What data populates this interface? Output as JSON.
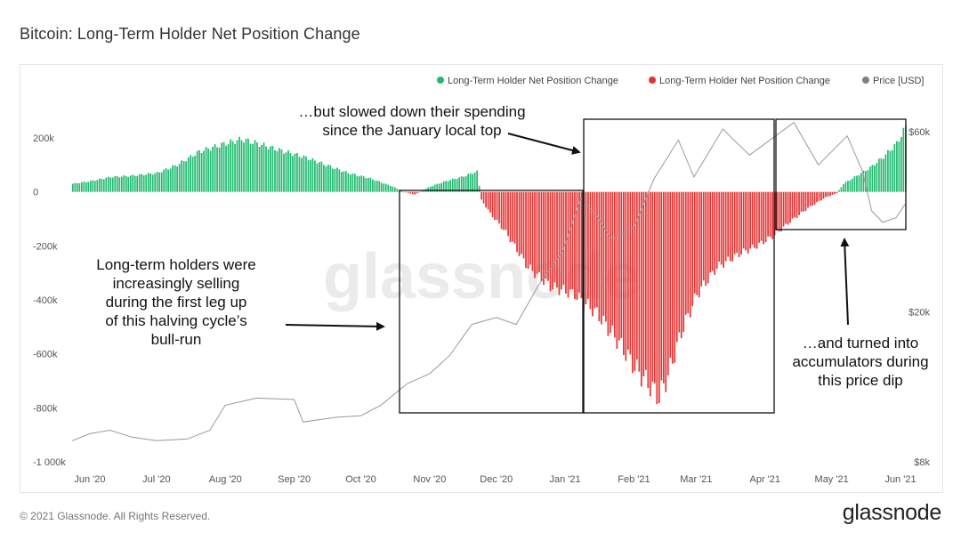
{
  "title": "Bitcoin: Long-Term Holder Net Position Change",
  "copyright": "© 2021 Glassnode. All Rights Reserved.",
  "brand": "glassnode",
  "watermark": "glassnode",
  "colors": {
    "positive": "#1fba6e",
    "negative": "#e63232",
    "price": "#999999",
    "legend_price_dot": "#808080",
    "box": "#111111"
  },
  "chart_data": {
    "type": "bar",
    "legend": [
      {
        "label": "Long-Term Holder Net Position Change",
        "color": "#1fba6e"
      },
      {
        "label": "Long-Term Holder Net Position Change",
        "color": "#e63232"
      },
      {
        "label": "Price [USD]",
        "color": "#808080"
      }
    ],
    "legend_position": "top-right",
    "x_ticks": [
      "Jun '20",
      "Jul '20",
      "Aug '20",
      "Sep '20",
      "Oct '20",
      "Nov '20",
      "Dec '20",
      "Jan '21",
      "Feb '21",
      "Mar '21",
      "Apr '21",
      "May '21",
      "Jun '21"
    ],
    "x_range": [
      "2020-05-24",
      "2021-06-03"
    ],
    "y_left": {
      "ticks": [
        200000,
        0,
        -200000,
        -400000,
        -600000,
        -800000,
        -1000000
      ],
      "tick_labels": [
        "200k",
        "0",
        "-200k",
        "-400k",
        "-600k",
        "-800k",
        "-1 000k"
      ],
      "range": [
        -1000000,
        260000
      ]
    },
    "y_right": {
      "scale": "log",
      "ticks": [
        60000,
        20000,
        8000
      ],
      "tick_labels": [
        "$60k",
        "$20k",
        "$8k"
      ],
      "range": [
        8000,
        65000
      ]
    },
    "net_position_series": [
      [
        "2020-05-24",
        30000
      ],
      [
        "2020-06-01",
        40000
      ],
      [
        "2020-06-10",
        55000
      ],
      [
        "2020-06-20",
        60000
      ],
      [
        "2020-07-01",
        70000
      ],
      [
        "2020-07-10",
        100000
      ],
      [
        "2020-07-20",
        150000
      ],
      [
        "2020-08-01",
        180000
      ],
      [
        "2020-08-08",
        195000
      ],
      [
        "2020-08-15",
        180000
      ],
      [
        "2020-08-25",
        155000
      ],
      [
        "2020-09-05",
        130000
      ],
      [
        "2020-09-15",
        100000
      ],
      [
        "2020-09-25",
        70000
      ],
      [
        "2020-10-05",
        50000
      ],
      [
        "2020-10-15",
        20000
      ],
      [
        "2020-10-20",
        0
      ],
      [
        "2020-10-25",
        -10000
      ],
      [
        "2020-11-01",
        20000
      ],
      [
        "2020-11-08",
        40000
      ],
      [
        "2020-11-15",
        55000
      ],
      [
        "2020-11-20",
        70000
      ],
      [
        "2020-11-22",
        75000
      ],
      [
        "2020-11-24",
        -30000
      ],
      [
        "2020-11-28",
        -80000
      ],
      [
        "2020-12-05",
        -150000
      ],
      [
        "2020-12-15",
        -280000
      ],
      [
        "2020-12-25",
        -350000
      ],
      [
        "2021-01-05",
        -380000
      ],
      [
        "2021-01-15",
        -450000
      ],
      [
        "2021-01-25",
        -560000
      ],
      [
        "2021-02-01",
        -650000
      ],
      [
        "2021-02-08",
        -720000
      ],
      [
        "2021-02-12",
        -760000
      ],
      [
        "2021-02-16",
        -680000
      ],
      [
        "2021-02-22",
        -520000
      ],
      [
        "2021-03-01",
        -380000
      ],
      [
        "2021-03-10",
        -280000
      ],
      [
        "2021-03-20",
        -230000
      ],
      [
        "2021-03-28",
        -200000
      ],
      [
        "2021-04-05",
        -160000
      ],
      [
        "2021-04-12",
        -110000
      ],
      [
        "2021-04-20",
        -60000
      ],
      [
        "2021-04-28",
        -20000
      ],
      [
        "2021-05-03",
        -5000
      ],
      [
        "2021-05-06",
        30000
      ],
      [
        "2021-05-12",
        60000
      ],
      [
        "2021-05-18",
        90000
      ],
      [
        "2021-05-24",
        130000
      ],
      [
        "2021-05-30",
        180000
      ],
      [
        "2021-06-03",
        240000
      ]
    ],
    "price_series": [
      [
        "2020-05-24",
        9100
      ],
      [
        "2020-06-01",
        9500
      ],
      [
        "2020-06-10",
        9700
      ],
      [
        "2020-06-20",
        9300
      ],
      [
        "2020-07-01",
        9100
      ],
      [
        "2020-07-15",
        9200
      ],
      [
        "2020-07-25",
        9700
      ],
      [
        "2020-08-01",
        11300
      ],
      [
        "2020-08-15",
        11800
      ],
      [
        "2020-09-01",
        11700
      ],
      [
        "2020-09-05",
        10200
      ],
      [
        "2020-09-20",
        10500
      ],
      [
        "2020-10-01",
        10600
      ],
      [
        "2020-10-10",
        11300
      ],
      [
        "2020-10-22",
        12900
      ],
      [
        "2020-11-01",
        13700
      ],
      [
        "2020-11-10",
        15300
      ],
      [
        "2020-11-20",
        18500
      ],
      [
        "2020-12-01",
        19300
      ],
      [
        "2020-12-10",
        18500
      ],
      [
        "2020-12-20",
        23500
      ],
      [
        "2020-12-31",
        29000
      ],
      [
        "2021-01-08",
        40000
      ],
      [
        "2021-01-15",
        36000
      ],
      [
        "2021-01-22",
        31000
      ],
      [
        "2021-02-01",
        33500
      ],
      [
        "2021-02-10",
        45000
      ],
      [
        "2021-02-21",
        57000
      ],
      [
        "2021-02-28",
        45500
      ],
      [
        "2021-03-13",
        61000
      ],
      [
        "2021-03-25",
        52000
      ],
      [
        "2021-04-05",
        58000
      ],
      [
        "2021-04-14",
        63500
      ],
      [
        "2021-04-25",
        49000
      ],
      [
        "2021-05-08",
        58500
      ],
      [
        "2021-05-15",
        47000
      ],
      [
        "2021-05-19",
        37000
      ],
      [
        "2021-05-24",
        34500
      ],
      [
        "2021-05-30",
        35500
      ],
      [
        "2021-06-03",
        38500
      ]
    ],
    "annotations": [
      {
        "lines": [
          "…but slowed down their spending",
          "since the January local top"
        ]
      },
      {
        "lines": [
          "Long-term holders were",
          "increasingly selling",
          "during the first leg up",
          "of this halving cycle’s",
          "bull-run"
        ]
      },
      {
        "lines": [
          "…and turned into",
          "accumulators during",
          "this price dip"
        ]
      }
    ]
  }
}
